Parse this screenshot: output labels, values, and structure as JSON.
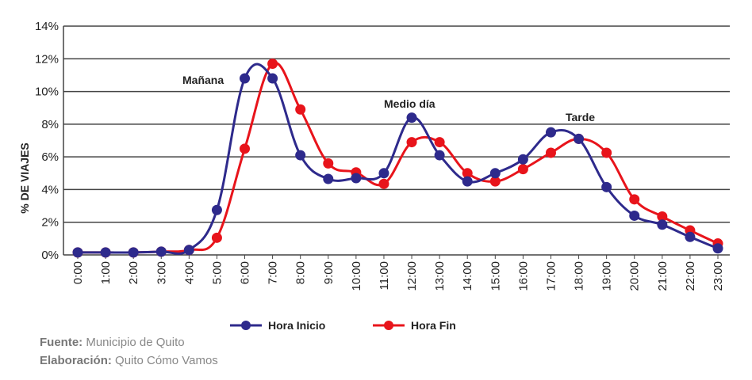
{
  "chart_data": {
    "type": "line",
    "title": "",
    "xlabel": "",
    "ylabel": "% DE VIAJES",
    "ylim": [
      0,
      14
    ],
    "yticks": [
      "0%",
      "2%",
      "4%",
      "6%",
      "8%",
      "10%",
      "12%",
      "14%"
    ],
    "grid": true,
    "legend_position": "bottom",
    "categories": [
      "0:00",
      "1:00",
      "2:00",
      "3:00",
      "4:00",
      "5:00",
      "6:00",
      "7:00",
      "8:00",
      "9:00",
      "10:00",
      "11:00",
      "12:00",
      "13:00",
      "14:00",
      "15:00",
      "16:00",
      "17:00",
      "18:00",
      "19:00",
      "20:00",
      "21:00",
      "22:00",
      "23:00"
    ],
    "series": [
      {
        "name": "Hora Inicio",
        "color": "#2e2a8c",
        "values": [
          0.15,
          0.15,
          0.15,
          0.2,
          0.3,
          2.75,
          10.8,
          10.8,
          6.1,
          4.65,
          4.7,
          5.0,
          8.4,
          6.1,
          4.5,
          5.0,
          5.85,
          7.5,
          7.1,
          4.15,
          2.4,
          1.85,
          1.1,
          0.4
        ]
      },
      {
        "name": "Hora Fin",
        "color": "#e8141b",
        "values": [
          0.15,
          0.15,
          0.15,
          0.2,
          0.3,
          1.05,
          6.5,
          11.7,
          8.9,
          5.6,
          5.05,
          4.35,
          6.9,
          6.9,
          5.0,
          4.5,
          5.25,
          6.25,
          7.1,
          6.25,
          3.4,
          2.35,
          1.5,
          0.7
        ]
      }
    ],
    "annotations": [
      {
        "text": "Mañana",
        "x": "6:00"
      },
      {
        "text": "Medio día",
        "x": "12:00"
      },
      {
        "text": "Tarde",
        "x": "18:00"
      }
    ]
  },
  "footer": {
    "source_label": "Fuente:",
    "source_value": "Municipio de Quito",
    "elab_label": "Elaboración:",
    "elab_value": "Quito Cómo Vamos"
  }
}
